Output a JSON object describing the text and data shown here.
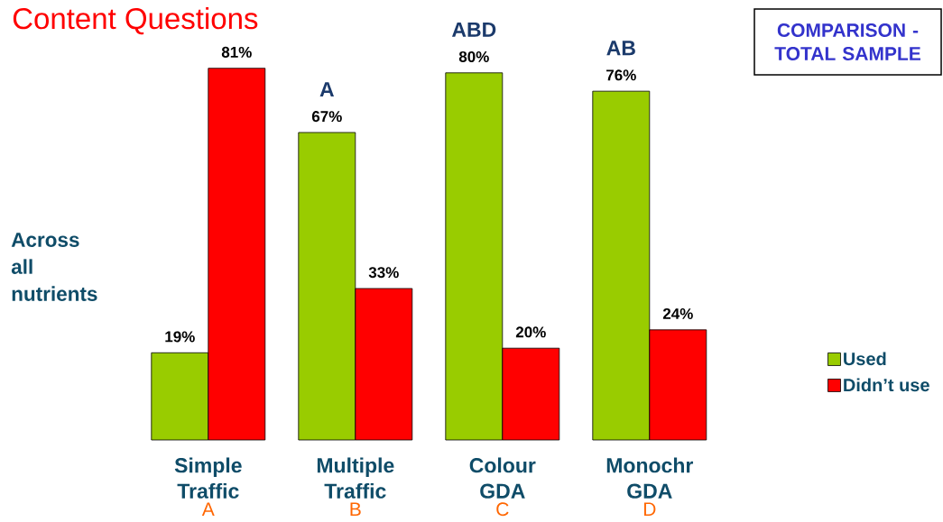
{
  "chart_data": {
    "type": "bar",
    "title": "Content Questions",
    "ylabel": "Across all nutrients",
    "categories": [
      "Simple Traffic",
      "Multiple Traffic",
      "Colour GDA",
      "Monochr GDA"
    ],
    "series": [
      {
        "name": "Used",
        "color": "#99cc00",
        "values": [
          19,
          67,
          80,
          76
        ],
        "value_labels": [
          "19%",
          "67%",
          "80%",
          "76%"
        ]
      },
      {
        "name": "Didn’t use",
        "color": "#ff0000",
        "values": [
          81,
          33,
          20,
          24
        ],
        "value_labels": [
          "81%",
          "33%",
          "20%",
          "24%"
        ]
      }
    ],
    "legend": "right",
    "annotations": [
      "COMPARISON - TOTAL SAMPLE",
      {
        "text": "A",
        "x": "Multiple Traffic",
        "y": 67
      },
      {
        "text": "ABD",
        "x": "Colour GDA",
        "y": 80
      },
      {
        "text": "AB",
        "x": "Monochr GDA",
        "y": 76
      },
      "A",
      "B",
      "C",
      "D"
    ]
  }
}
